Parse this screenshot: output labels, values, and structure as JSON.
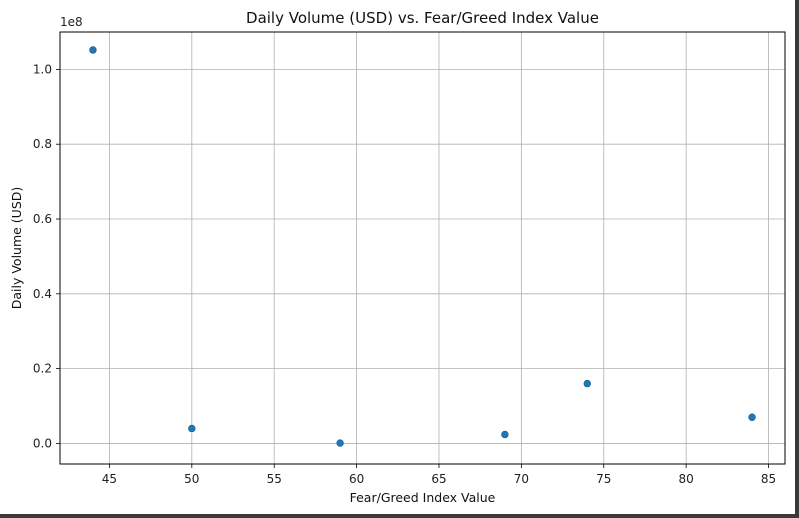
{
  "chart_data": {
    "type": "scatter",
    "title": "Daily Volume (USD) vs. Fear/Greed Index Value",
    "xlabel": "Fear/Greed Index Value",
    "ylabel": "Daily Volume (USD)",
    "y_offset_label": "1e8",
    "xlim": [
      42.0,
      86.0
    ],
    "ylim": [
      -0.055,
      1.1
    ],
    "x_ticks": [
      45,
      50,
      55,
      60,
      65,
      70,
      75,
      80,
      85
    ],
    "y_ticks": [
      0.0,
      0.2,
      0.4,
      0.6,
      0.8,
      1.0
    ],
    "y_tick_labels": [
      "0.0",
      "0.2",
      "0.4",
      "0.6",
      "0.8",
      "1.0"
    ],
    "grid": true,
    "marker_color": "#1f77b4",
    "points": [
      {
        "x": 44,
        "y": 1.052
      },
      {
        "x": 50,
        "y": 0.04
      },
      {
        "x": 59,
        "y": 0.001
      },
      {
        "x": 69,
        "y": 0.024
      },
      {
        "x": 74,
        "y": 0.16
      },
      {
        "x": 84,
        "y": 0.07
      }
    ]
  }
}
